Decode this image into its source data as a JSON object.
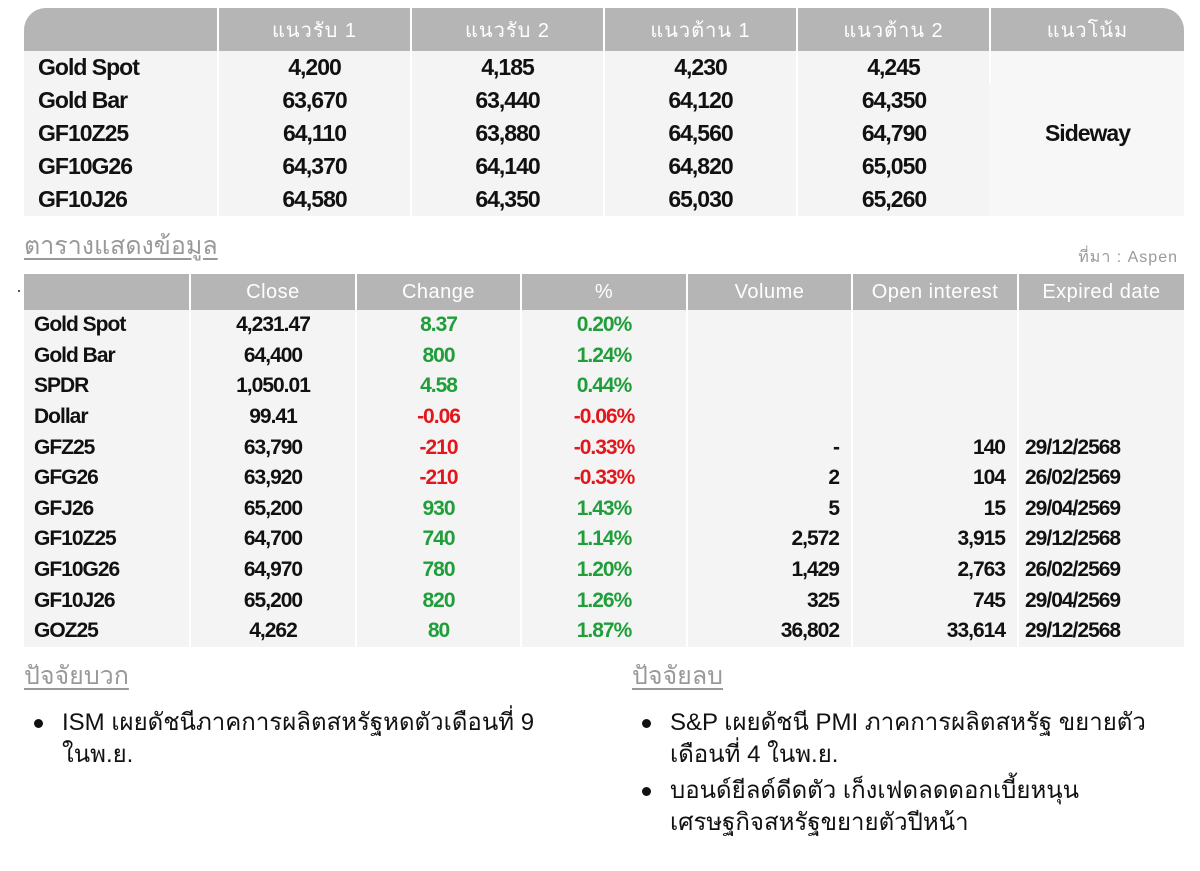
{
  "levels_table": {
    "headers": [
      "",
      "แนวรับ 1",
      "แนวรับ 2",
      "แนวต้าน 1",
      "แนวต้าน 2",
      "แนวโน้ม"
    ],
    "rows": [
      {
        "name": "Gold Spot",
        "s1": "4,200",
        "s2": "4,185",
        "r1": "4,230",
        "r2": "4,245"
      },
      {
        "name": "Gold Bar",
        "s1": "63,670",
        "s2": "63,440",
        "r1": "64,120",
        "r2": "64,350"
      },
      {
        "name": "GF10Z25",
        "s1": "64,110",
        "s2": "63,880",
        "r1": "64,560",
        "r2": "64,790"
      },
      {
        "name": "GF10G26",
        "s1": "64,370",
        "s2": "64,140",
        "r1": "64,820",
        "r2": "65,050"
      },
      {
        "name": "GF10J26",
        "s1": "64,580",
        "s2": "64,350",
        "r1": "65,030",
        "r2": "65,260"
      }
    ],
    "trend": "Sideway"
  },
  "data_section": {
    "title": "ตารางแสดงข้อมูล",
    "source": "ที่มา : Aspen"
  },
  "colors": {
    "up": "#1f9e3a",
    "down": "#e3161c",
    "header": "#b5b5b5"
  },
  "market_table": {
    "headers": [
      "",
      "Close",
      "Change",
      "%",
      "Volume",
      "Open interest",
      "Expired date"
    ],
    "rows": [
      {
        "name": "Gold Spot",
        "close": "4,231.47",
        "change": "8.37",
        "pct": "0.20%",
        "dir": "up",
        "volume": "",
        "oi": "",
        "expired": ""
      },
      {
        "name": "Gold Bar",
        "close": "64,400",
        "change": "800",
        "pct": "1.24%",
        "dir": "up",
        "volume": "",
        "oi": "",
        "expired": ""
      },
      {
        "name": "SPDR",
        "close": "1,050.01",
        "change": "4.58",
        "pct": "0.44%",
        "dir": "up",
        "volume": "",
        "oi": "",
        "expired": ""
      },
      {
        "name": "Dollar",
        "close": "99.41",
        "change": "-0.06",
        "pct": "-0.06%",
        "dir": "down",
        "volume": "",
        "oi": "",
        "expired": ""
      },
      {
        "name": "GFZ25",
        "close": "63,790",
        "change": "-210",
        "pct": "-0.33%",
        "dir": "down",
        "volume": "-",
        "oi": "140",
        "expired": "29/12/2568"
      },
      {
        "name": "GFG26",
        "close": "63,920",
        "change": "-210",
        "pct": "-0.33%",
        "dir": "down",
        "volume": "2",
        "oi": "104",
        "expired": "26/02/2569"
      },
      {
        "name": "GFJ26",
        "close": "65,200",
        "change": "930",
        "pct": "1.43%",
        "dir": "up",
        "volume": "5",
        "oi": "15",
        "expired": "29/04/2569"
      },
      {
        "name": "GF10Z25",
        "close": "64,700",
        "change": "740",
        "pct": "1.14%",
        "dir": "up",
        "volume": "2,572",
        "oi": "3,915",
        "expired": "29/12/2568"
      },
      {
        "name": "GF10G26",
        "close": "64,970",
        "change": "780",
        "pct": "1.20%",
        "dir": "up",
        "volume": "1,429",
        "oi": "2,763",
        "expired": "26/02/2569"
      },
      {
        "name": "GF10J26",
        "close": "65,200",
        "change": "820",
        "pct": "1.26%",
        "dir": "up",
        "volume": "325",
        "oi": "745",
        "expired": "29/04/2569"
      },
      {
        "name": "GOZ25",
        "close": "4,262",
        "change": "80",
        "pct": "1.87%",
        "dir": "up",
        "volume": "36,802",
        "oi": "33,614",
        "expired": "29/12/2568"
      }
    ]
  },
  "positive_factors": {
    "title": "ปัจจัยบวก",
    "items": [
      "ISM เผยดัชนีภาคการผลิตสหรัฐหดตัวเดือนที่ 9 ในพ.ย."
    ]
  },
  "negative_factors": {
    "title": "ปัจจัยลบ",
    "items": [
      "S&P เผยดัชนี PMI ภาคการผลิตสหรัฐ ขยายตัวเดือนที่ 4 ในพ.ย.",
      "บอนด์ยีลด์ดีดตัว เก็งเฟดลดดอกเบี้ยหนุน เศรษฐกิจสหรัฐขยายตัวปีหน้า"
    ]
  }
}
